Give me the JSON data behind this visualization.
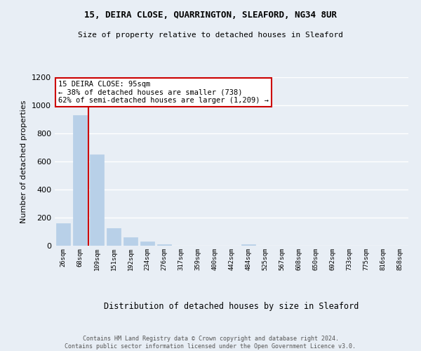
{
  "title": "15, DEIRA CLOSE, QUARRINGTON, SLEAFORD, NG34 8UR",
  "subtitle": "Size of property relative to detached houses in Sleaford",
  "xlabel": "Distribution of detached houses by size in Sleaford",
  "ylabel": "Number of detached properties",
  "bar_labels": [
    "26sqm",
    "68sqm",
    "109sqm",
    "151sqm",
    "192sqm",
    "234sqm",
    "276sqm",
    "317sqm",
    "359sqm",
    "400sqm",
    "442sqm",
    "484sqm",
    "525sqm",
    "567sqm",
    "608sqm",
    "650sqm",
    "692sqm",
    "733sqm",
    "775sqm",
    "816sqm",
    "858sqm"
  ],
  "bar_values": [
    160,
    930,
    650,
    125,
    60,
    28,
    10,
    0,
    0,
    0,
    0,
    10,
    0,
    0,
    0,
    0,
    0,
    0,
    0,
    0,
    0
  ],
  "bar_color": "#b8d0e8",
  "bar_edgecolor": "#b8d0e8",
  "vline_color": "#cc0000",
  "annotation_title": "15 DEIRA CLOSE: 95sqm",
  "annotation_line1": "← 38% of detached houses are smaller (738)",
  "annotation_line2": "62% of semi-detached houses are larger (1,209) →",
  "annotation_box_edgecolor": "#cc0000",
  "ylim": [
    0,
    1200
  ],
  "yticks": [
    0,
    200,
    400,
    600,
    800,
    1000,
    1200
  ],
  "footer_line1": "Contains HM Land Registry data © Crown copyright and database right 2024.",
  "footer_line2": "Contains public sector information licensed under the Open Government Licence v3.0.",
  "bg_color": "#e8eef5",
  "plot_bg_color": "#e8eef5"
}
